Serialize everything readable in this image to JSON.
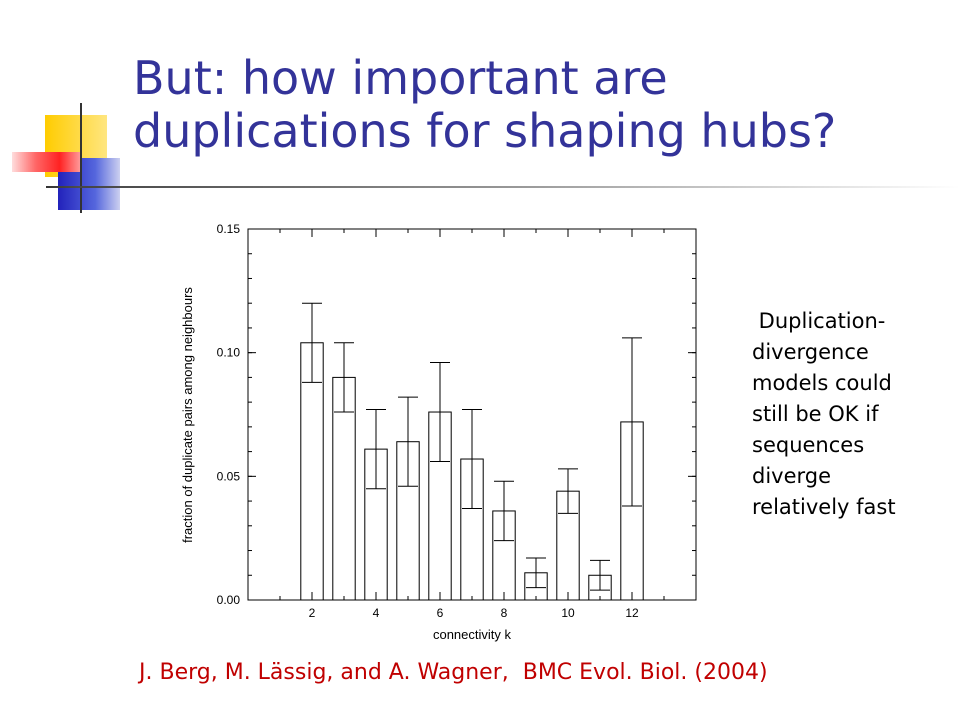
{
  "slide": {
    "title_lines": [
      "But: how important are",
      "duplications for shaping hubs?"
    ],
    "side_note_lines": [
      " Duplication-",
      "divergence",
      "models could",
      "still be OK if",
      "sequences",
      "diverge",
      "relatively fast"
    ],
    "citation": "J. Berg, M. Lässig, and A. Wagner,  BMC Evol. Biol. (2004)",
    "colors": {
      "title": "#333399",
      "citation": "#c00000",
      "deco_yellow": "#ffcc00",
      "deco_blue": "#3333cc",
      "deco_red": "#ff3333"
    }
  },
  "chart_data": {
    "type": "bar",
    "xlabel": "connectivity k",
    "ylabel": "fraction of duplicate pairs among neighbours",
    "xlim": [
      0,
      14
    ],
    "ylim": [
      0,
      0.15
    ],
    "x_ticks": [
      2,
      4,
      6,
      8,
      10,
      12
    ],
    "y_ticks": [
      0.0,
      0.05,
      0.1,
      0.15
    ],
    "y_tick_labels": [
      "0.00",
      "0.05",
      "0.10",
      "0.15"
    ],
    "x": [
      2,
      3,
      4,
      5,
      6,
      7,
      8,
      9,
      10,
      11,
      12
    ],
    "values": [
      0.104,
      0.09,
      0.061,
      0.064,
      0.076,
      0.057,
      0.036,
      0.011,
      0.044,
      0.01,
      0.072
    ],
    "error_low": [
      0.088,
      0.076,
      0.045,
      0.046,
      0.056,
      0.037,
      0.024,
      0.005,
      0.035,
      0.004,
      0.038
    ],
    "error_high": [
      0.12,
      0.104,
      0.077,
      0.082,
      0.096,
      0.077,
      0.048,
      0.017,
      0.053,
      0.016,
      0.106
    ],
    "bar_width": 0.7,
    "grid": false
  }
}
